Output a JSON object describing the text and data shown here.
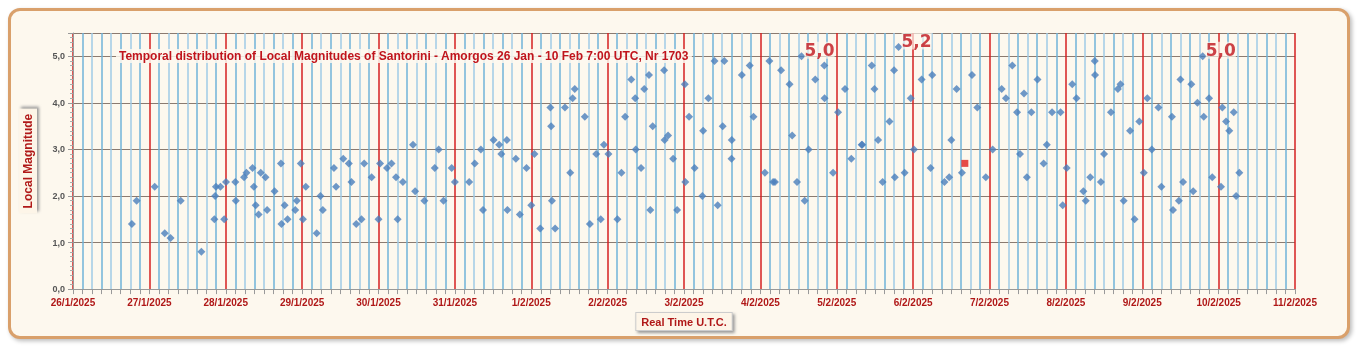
{
  "chart_data": {
    "type": "scatter",
    "title": "Temporal distribution of Local Magnitudes of Santorini - Amorgos 26 Jan - 10 Feb 7:00 UTC, Nr 1703",
    "xlabel": "Real Time U.T.C.",
    "ylabel": "Local Magnitude",
    "xlim": [
      "2025-01-26",
      "2025-02-11"
    ],
    "xticks": [
      {
        "value": "2025-01-26",
        "label": "26/1/2025"
      },
      {
        "value": "2025-01-26T03:00",
        "label": null
      },
      {
        "value": "2025-01-26T06:00",
        "label": null
      },
      {
        "value": "2025-01-26T09:00",
        "label": null
      },
      {
        "value": "2025-01-26T12:00",
        "label": null
      },
      {
        "value": "2025-01-26T15:00",
        "label": null
      },
      {
        "value": "2025-01-26T18:00",
        "label": null
      },
      {
        "value": "2025-01-26T21:00",
        "label": null
      },
      {
        "value": "2025-01-27",
        "label": "27/1/2025"
      },
      {
        "value": "2025-01-27T03:00",
        "label": null
      },
      {
        "value": "2025-01-27T06:00",
        "label": null
      },
      {
        "value": "2025-01-27T09:00",
        "label": null
      },
      {
        "value": "2025-01-27T12:00",
        "label": null
      },
      {
        "value": "2025-01-27T15:00",
        "label": null
      },
      {
        "value": "2025-01-27T18:00",
        "label": null
      },
      {
        "value": "2025-01-27T21:00",
        "label": null
      },
      {
        "value": "2025-01-28",
        "label": "28/1/2025"
      },
      {
        "value": "2025-01-28T03:00",
        "label": null
      },
      {
        "value": "2025-01-28T06:00",
        "label": null
      },
      {
        "value": "2025-01-28T09:00",
        "label": null
      },
      {
        "value": "2025-01-28T12:00",
        "label": null
      },
      {
        "value": "2025-01-28T15:00",
        "label": null
      },
      {
        "value": "2025-01-28T18:00",
        "label": null
      },
      {
        "value": "2025-01-28T21:00",
        "label": null
      },
      {
        "value": "2025-01-29",
        "label": "29/1/2025"
      },
      {
        "value": "2025-01-29T03:00",
        "label": null
      },
      {
        "value": "2025-01-29T06:00",
        "label": null
      },
      {
        "value": "2025-01-29T09:00",
        "label": null
      },
      {
        "value": "2025-01-29T12:00",
        "label": null
      },
      {
        "value": "2025-01-29T15:00",
        "label": null
      },
      {
        "value": "2025-01-29T18:00",
        "label": null
      },
      {
        "value": "2025-01-29T21:00",
        "label": null
      },
      {
        "value": "2025-01-30",
        "label": "30/1/2025"
      },
      {
        "value": "2025-01-30T03:00",
        "label": null
      },
      {
        "value": "2025-01-30T06:00",
        "label": null
      },
      {
        "value": "2025-01-30T09:00",
        "label": null
      },
      {
        "value": "2025-01-30T12:00",
        "label": null
      },
      {
        "value": "2025-01-30T15:00",
        "label": null
      },
      {
        "value": "2025-01-30T18:00",
        "label": null
      },
      {
        "value": "2025-01-30T21:00",
        "label": null
      },
      {
        "value": "2025-01-31",
        "label": "31/1/2025"
      },
      {
        "value": "2025-01-31T03:00",
        "label": null
      },
      {
        "value": "2025-01-31T06:00",
        "label": null
      },
      {
        "value": "2025-01-31T09:00",
        "label": null
      },
      {
        "value": "2025-01-31T12:00",
        "label": null
      },
      {
        "value": "2025-01-31T15:00",
        "label": null
      },
      {
        "value": "2025-01-31T18:00",
        "label": null
      },
      {
        "value": "2025-01-31T21:00",
        "label": null
      },
      {
        "value": "2025-02-01",
        "label": "1/2/2025"
      },
      {
        "value": "2025-02-01T03:00",
        "label": null
      },
      {
        "value": "2025-02-01T06:00",
        "label": null
      },
      {
        "value": "2025-02-01T09:00",
        "label": null
      },
      {
        "value": "2025-02-01T12:00",
        "label": null
      },
      {
        "value": "2025-02-01T15:00",
        "label": null
      },
      {
        "value": "2025-02-01T18:00",
        "label": null
      },
      {
        "value": "2025-02-01T21:00",
        "label": null
      },
      {
        "value": "2025-02-02",
        "label": "2/2/2025"
      },
      {
        "value": "2025-02-02T03:00",
        "label": null
      },
      {
        "value": "2025-02-02T06:00",
        "label": null
      },
      {
        "value": "2025-02-02T09:00",
        "label": null
      },
      {
        "value": "2025-02-02T12:00",
        "label": null
      },
      {
        "value": "2025-02-02T15:00",
        "label": null
      },
      {
        "value": "2025-02-02T18:00",
        "label": null
      },
      {
        "value": "2025-02-02T21:00",
        "label": null
      },
      {
        "value": "2025-02-03",
        "label": "3/2/2025"
      },
      {
        "value": "2025-02-03T03:00",
        "label": null
      },
      {
        "value": "2025-02-03T06:00",
        "label": null
      },
      {
        "value": "2025-02-03T09:00",
        "label": null
      },
      {
        "value": "2025-02-03T12:00",
        "label": null
      },
      {
        "value": "2025-02-03T15:00",
        "label": null
      },
      {
        "value": "2025-02-03T18:00",
        "label": null
      },
      {
        "value": "2025-02-03T21:00",
        "label": null
      },
      {
        "value": "2025-02-04",
        "label": "4/2/2025"
      },
      {
        "value": "2025-02-04T03:00",
        "label": null
      },
      {
        "value": "2025-02-04T06:00",
        "label": null
      },
      {
        "value": "2025-02-04T09:00",
        "label": null
      },
      {
        "value": "2025-02-04T12:00",
        "label": null
      },
      {
        "value": "2025-02-04T15:00",
        "label": null
      },
      {
        "value": "2025-02-04T18:00",
        "label": null
      },
      {
        "value": "2025-02-04T21:00",
        "label": null
      },
      {
        "value": "2025-02-05",
        "label": "5/2/2025"
      },
      {
        "value": "2025-02-05T03:00",
        "label": null
      },
      {
        "value": "2025-02-05T06:00",
        "label": null
      },
      {
        "value": "2025-02-05T09:00",
        "label": null
      },
      {
        "value": "2025-02-05T12:00",
        "label": null
      },
      {
        "value": "2025-02-05T15:00",
        "label": null
      },
      {
        "value": "2025-02-05T18:00",
        "label": null
      },
      {
        "value": "2025-02-05T21:00",
        "label": null
      },
      {
        "value": "2025-02-06",
        "label": "6/2/2025"
      },
      {
        "value": "2025-02-06T03:00",
        "label": null
      },
      {
        "value": "2025-02-06T06:00",
        "label": null
      },
      {
        "value": "2025-02-06T09:00",
        "label": null
      },
      {
        "value": "2025-02-06T12:00",
        "label": null
      },
      {
        "value": "2025-02-06T15:00",
        "label": null
      },
      {
        "value": "2025-02-06T18:00",
        "label": null
      },
      {
        "value": "2025-02-06T21:00",
        "label": null
      },
      {
        "value": "2025-02-07",
        "label": "7/2/2025"
      },
      {
        "value": "2025-02-07T03:00",
        "label": null
      },
      {
        "value": "2025-02-07T06:00",
        "label": null
      },
      {
        "value": "2025-02-07T09:00",
        "label": null
      },
      {
        "value": "2025-02-07T12:00",
        "label": null
      },
      {
        "value": "2025-02-07T15:00",
        "label": null
      },
      {
        "value": "2025-02-07T18:00",
        "label": null
      },
      {
        "value": "2025-02-07T21:00",
        "label": null
      },
      {
        "value": "2025-02-08",
        "label": "8/2/2025"
      },
      {
        "value": "2025-02-08T03:00",
        "label": null
      },
      {
        "value": "2025-02-08T06:00",
        "label": null
      },
      {
        "value": "2025-02-08T09:00",
        "label": null
      },
      {
        "value": "2025-02-08T12:00",
        "label": null
      },
      {
        "value": "2025-02-08T15:00",
        "label": null
      },
      {
        "value": "2025-02-08T18:00",
        "label": null
      },
      {
        "value": "2025-02-08T21:00",
        "label": null
      },
      {
        "value": "2025-02-09",
        "label": "9/2/2025"
      },
      {
        "value": "2025-02-09T03:00",
        "label": null
      },
      {
        "value": "2025-02-09T06:00",
        "label": null
      },
      {
        "value": "2025-02-09T09:00",
        "label": null
      },
      {
        "value": "2025-02-09T12:00",
        "label": null
      },
      {
        "value": "2025-02-09T15:00",
        "label": null
      },
      {
        "value": "2025-02-09T18:00",
        "label": null
      },
      {
        "value": "2025-02-09T21:00",
        "label": null
      },
      {
        "value": "2025-02-10",
        "label": "10/2/2025"
      },
      {
        "value": "2025-02-10T03:00",
        "label": null
      },
      {
        "value": "2025-02-10T06:00",
        "label": null
      },
      {
        "value": "2025-02-10T09:00",
        "label": null
      },
      {
        "value": "2025-02-10T12:00",
        "label": null
      },
      {
        "value": "2025-02-10T15:00",
        "label": null
      },
      {
        "value": "2025-02-10T18:00",
        "label": null
      },
      {
        "value": "2025-02-10T21:00",
        "label": null
      },
      {
        "value": "2025-02-11",
        "label": "11/2/2025"
      }
    ],
    "ylim": [
      0,
      5.5
    ],
    "yticks": [
      {
        "value": 0,
        "label": "0,0"
      },
      {
        "value": 1,
        "label": "1,0"
      },
      {
        "value": 2,
        "label": "2,0"
      },
      {
        "value": 3,
        "label": "3,0"
      },
      {
        "value": 4,
        "label": "4,0"
      },
      {
        "value": 5,
        "label": "5,0"
      }
    ],
    "grid": true,
    "annotations": [
      {
        "text": "5,0",
        "x": "2025-02-04T12:55",
        "y": 5.0
      },
      {
        "text": "5,2",
        "x": "2025-02-05T19:25",
        "y": 5.2
      },
      {
        "text": "5,0",
        "x": "2025-02-09T19:00",
        "y": 5.0
      }
    ],
    "series": [
      {
        "color": "#4a7ebb",
        "marker": "diamond",
        "x": [
          "2025-01-26T18:30",
          "2025-01-26T20:00",
          "2025-01-27T01:40",
          "2025-01-27T04:50",
          "2025-01-27T06:40",
          "2025-01-27T09:50",
          "2025-01-27T16:20",
          "2025-01-27T20:25",
          "2025-01-27T20:40",
          "2025-01-27T20:55",
          "2025-01-27T22:20",
          "2025-01-28T00:05",
          "2025-01-27T23:30",
          "2025-01-28T03:00",
          "2025-01-28T03:10",
          "2025-01-28T05:45",
          "2025-01-28T06:30",
          "2025-01-28T08:25",
          "2025-01-28T08:50",
          "2025-01-28T09:25",
          "2025-01-28T10:20",
          "2025-01-28T11:00",
          "2025-01-28T12:30",
          "2025-01-28T13:00",
          "2025-01-28T15:20",
          "2025-01-28T17:20",
          "2025-01-28T17:30",
          "2025-01-28T18:30",
          "2025-01-28T19:25",
          "2025-01-28T21:50",
          "2025-01-28T22:20",
          "2025-01-28T23:35",
          "2025-01-29T00:15",
          "2025-01-29T01:10",
          "2025-01-29T05:45",
          "2025-01-29T04:35",
          "2025-01-29T06:30",
          "2025-01-29T10:00",
          "2025-01-29T10:40",
          "2025-01-29T12:55",
          "2025-01-29T14:40",
          "2025-01-29T15:30",
          "2025-01-29T17:00",
          "2025-01-29T18:40",
          "2025-01-29T19:30",
          "2025-01-29T21:50",
          "2025-01-30T00:00",
          "2025-01-30T00:30",
          "2025-01-30T02:40",
          "2025-01-30T04:05",
          "2025-01-30T05:30",
          "2025-01-30T06:00",
          "2025-01-30T07:40",
          "2025-01-30T10:50",
          "2025-01-30T11:30",
          "2025-01-30T14:25",
          "2025-01-30T17:40",
          "2025-01-30T18:55",
          "2025-01-30T20:25",
          "2025-01-30T23:00",
          "2025-01-31T00:00",
          "2025-01-31T04:30",
          "2025-01-31T06:15",
          "2025-01-31T08:10",
          "2025-01-31T08:50",
          "2025-01-31T12:10",
          "2025-01-31T13:55",
          "2025-01-31T14:35",
          "2025-01-31T16:20",
          "2025-01-31T16:30",
          "2025-01-31T19:10",
          "2025-01-31T20:25",
          "2025-01-31T22:30",
          "2025-02-01T00:00",
          "2025-02-01T01:00",
          "2025-02-01T02:50",
          "2025-02-01T06:00",
          "2025-02-01T06:15",
          "2025-02-01T07:30",
          "2025-02-01T06:30",
          "2025-02-01T10:35",
          "2025-02-01T13:00",
          "2025-02-01T13:40",
          "2025-02-01T12:15",
          "2025-02-01T16:50",
          "2025-02-01T18:25",
          "2025-02-01T20:25",
          "2025-02-01T21:50",
          "2025-02-01T22:50",
          "2025-02-02T00:15",
          "2025-02-02T03:05",
          "2025-02-02T04:20",
          "2025-02-02T05:30",
          "2025-02-02T07:25",
          "2025-02-02T08:40",
          "2025-02-02T08:50",
          "2025-02-02T10:30",
          "2025-02-02T11:30",
          "2025-02-02T13:00",
          "2025-02-02T13:25",
          "2025-02-02T14:10",
          "2025-02-02T17:45",
          "2025-02-02T17:55",
          "2025-02-02T20:35",
          "2025-02-02T21:50",
          "2025-02-03T00:15",
          "2025-02-03T00:25",
          "2025-02-03T01:35",
          "2025-02-03T03:20",
          "2025-02-03T05:45",
          "2025-02-03T07:40",
          "2025-02-03T09:35",
          "2025-02-03T10:35",
          "2025-02-03T12:40",
          "2025-02-03T12:10",
          "2025-02-03T14:55",
          "2025-02-03T18:10",
          "2025-02-03T20:40",
          "2025-02-03T21:50",
          "2025-02-04T01:25",
          "2025-02-04T02:50",
          "2025-02-04T04:35",
          "2025-02-04T06:30",
          "2025-02-04T04:00",
          "2025-02-04T09:10",
          "2025-02-04T11:30",
          "2025-02-04T12:55",
          "2025-02-04T13:55",
          "2025-02-04T15:10",
          "2025-02-04T17:15",
          "2025-02-04T20:05",
          "2025-02-04T20:10",
          "2025-02-04T22:50",
          "2025-02-05T00:25",
          "2025-02-05T02:35",
          "2025-02-05T04:35",
          "2025-02-05T07:50",
          "2025-02-05T11:00",
          "2025-02-05T11:50",
          "2025-02-05T14:25",
          "2025-02-05T16:35",
          "2025-02-05T18:00",
          "2025-02-05T18:15",
          "2025-02-05T19:25",
          "2025-02-05T21:20",
          "2025-02-05T23:15",
          "2025-02-06T00:15",
          "2025-02-06T02:40",
          "2025-02-06T06:00",
          "2025-02-06T05:30",
          "2025-02-06T09:50",
          "2025-02-06T11:20",
          "2025-02-06T13:40",
          "2025-02-06T15:20",
          "2025-02-06T18:30",
          "2025-02-06T20:10",
          "2025-02-06T22:50",
          "2025-02-07T01:00",
          "2025-02-07T03:50",
          "2025-02-07T05:10",
          "2025-02-07T07:10",
          "2025-02-07T09:35",
          "2025-02-07T08:40",
          "2025-02-07T10:50",
          "2025-02-07T11:45",
          "2025-02-07T13:10",
          "2025-02-07T15:05",
          "2025-02-07T17:00",
          "2025-02-07T19:40",
          "2025-02-07T22:20",
          "2025-02-07T23:00",
          "2025-02-08T00:15",
          "2025-02-08T02:00",
          "2025-02-08T03:20",
          "2025-02-08T05:30",
          "2025-02-08T06:15",
          "2025-02-08T07:40",
          "2025-02-08T09:05",
          "2025-02-08T09:10",
          "2025-02-08T11:00",
          "2025-02-08T14:10",
          "2025-02-08T16:20",
          "2025-02-08T17:10",
          "2025-02-08T18:10",
          "2025-02-08T20:10",
          "2025-02-08T21:35",
          "2025-02-08T23:05",
          "2025-02-09T01:35",
          "2025-02-09T00:30",
          "2025-02-09T05:05",
          "2025-02-09T06:00",
          "2025-02-09T09:20",
          "2025-02-09T09:40",
          "2025-02-09T11:30",
          "2025-02-09T12:00",
          "2025-02-09T12:50",
          "2025-02-09T15:25",
          "2025-02-09T16:00",
          "2025-02-09T17:20",
          "2025-02-09T19:00",
          "2025-02-09T19:20",
          "2025-02-09T21:00",
          "2025-02-09T22:00",
          "2025-02-10T00:45",
          "2025-02-10T01:10",
          "2025-02-10T02:20",
          "2025-02-10T03:20",
          "2025-02-10T04:45",
          "2025-02-10T05:30",
          "2025-02-10T06:30",
          "2025-02-03T15:00",
          "2025-02-04T10:00",
          "2025-02-05T08:00",
          "2025-02-06T12:00",
          "2025-02-07T18:00",
          "2025-02-08T12:00",
          "2025-02-09T03:00",
          "2025-02-02T19:00",
          "2025-02-03T06:00",
          "2025-02-05T13:00"
        ],
        "values": [
          1.4,
          1.9,
          2.2,
          1.2,
          1.1,
          1.9,
          0.8,
          1.5,
          2.0,
          2.2,
          2.2,
          2.3,
          1.5,
          2.3,
          1.9,
          2.4,
          2.5,
          2.6,
          2.2,
          1.8,
          1.6,
          2.5,
          2.4,
          1.7,
          2.1,
          2.7,
          1.4,
          1.8,
          1.5,
          1.7,
          1.9,
          2.7,
          1.5,
          2.2,
          2.0,
          1.2,
          1.7,
          2.6,
          2.2,
          2.8,
          2.7,
          2.3,
          1.4,
          1.5,
          2.7,
          2.4,
          1.5,
          2.7,
          2.6,
          2.7,
          2.4,
          1.5,
          2.3,
          3.1,
          2.1,
          1.9,
          2.6,
          3.0,
          1.9,
          2.6,
          2.3,
          2.3,
          2.7,
          3.0,
          1.7,
          3.2,
          3.1,
          2.9,
          3.2,
          1.7,
          2.8,
          1.6,
          2.6,
          1.8,
          2.9,
          1.3,
          3.9,
          3.5,
          1.3,
          1.9,
          3.9,
          4.1,
          4.3,
          2.5,
          3.7,
          1.4,
          2.9,
          1.5,
          3.1,
          2.9,
          1.5,
          2.5,
          3.7,
          4.5,
          4.1,
          3.0,
          2.6,
          4.3,
          4.6,
          1.7,
          3.5,
          4.7,
          3.2,
          2.8,
          1.7,
          4.4,
          2.3,
          3.7,
          2.6,
          2.0,
          4.1,
          4.9,
          1.8,
          4.9,
          3.5,
          2.8,
          4.6,
          4.8,
          3.7,
          2.5,
          4.9,
          2.3,
          4.7,
          2.3,
          4.4,
          2.3,
          5.0,
          1.9,
          3.0,
          4.5,
          4.8,
          4.1,
          2.5,
          3.8,
          4.3,
          2.8,
          3.1,
          4.8,
          4.3,
          2.3,
          3.6,
          4.7,
          2.4,
          5.2,
          2.5,
          4.1,
          3.0,
          4.5,
          4.6,
          2.6,
          2.3,
          2.4,
          4.3,
          2.5,
          4.6,
          3.9,
          2.4,
          3.0,
          4.3,
          4.1,
          4.8,
          2.9,
          3.8,
          4.2,
          2.4,
          3.8,
          4.5,
          2.7,
          3.8,
          3.8,
          1.8,
          2.6,
          4.4,
          4.1,
          2.1,
          1.9,
          2.4,
          4.9,
          4.6,
          2.3,
          3.8,
          4.3,
          4.4,
          1.9,
          3.4,
          1.5,
          3.6,
          4.1,
          2.5,
          3.9,
          2.2,
          3.7,
          1.7,
          1.9,
          4.5,
          2.3,
          4.4,
          2.1,
          4.0,
          5.0,
          3.7,
          4.1,
          2.4,
          2.2,
          3.9,
          3.6,
          3.4,
          3.8,
          2.0,
          2.5,
          3.2,
          3.3,
          3.1,
          3.2,
          3.1,
          2.9,
          3.0,
          3.3,
          3.4,
          3.2
        ]
      },
      {
        "color": "#e0201c",
        "marker": "square",
        "x": [
          "2025-02-06T16:15"
        ],
        "values": [
          2.7
        ]
      }
    ]
  }
}
